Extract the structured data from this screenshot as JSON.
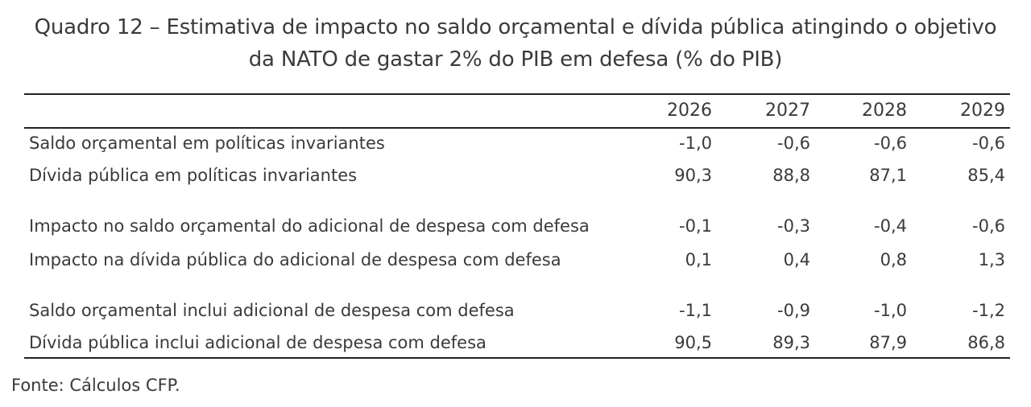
{
  "title": {
    "line1": "Quadro 12 – Estimativa de impacto no saldo orçamental e dívida pública atingindo o objetivo",
    "line2": "da NATO de gastar 2% do PIB em defesa (% do PIB)"
  },
  "table": {
    "years": [
      "2026",
      "2027",
      "2028",
      "2029"
    ],
    "rows": [
      {
        "label": "Saldo orçamental em políticas invariantes",
        "values": [
          "-1,0",
          "-0,6",
          "-0,6",
          "-0,6"
        ]
      },
      {
        "label": "Dívida pública em políticas invariantes",
        "values": [
          "90,3",
          "88,8",
          "87,1",
          "85,4"
        ]
      },
      {
        "label": "Impacto no saldo orçamental do adicional de despesa com defesa",
        "values": [
          "-0,1",
          "-0,3",
          "-0,4",
          "-0,6"
        ]
      },
      {
        "label": "Impacto na dívida pública do adicional de despesa com defesa",
        "values": [
          "0,1",
          "0,4",
          "0,8",
          "1,3"
        ]
      },
      {
        "label": "Saldo orçamental inclui adicional de despesa com defesa",
        "values": [
          "-1,1",
          "-0,9",
          "-1,0",
          "-1,2"
        ]
      },
      {
        "label": "Dívida pública inclui adicional de despesa com defesa",
        "values": [
          "90,5",
          "89,3",
          "87,9",
          "86,8"
        ]
      }
    ]
  },
  "source": "Fonte: Cálculos CFP."
}
